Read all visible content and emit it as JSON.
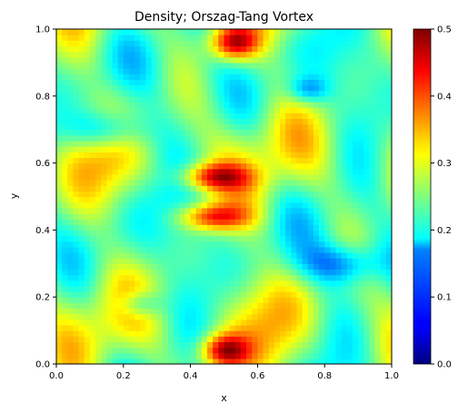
{
  "chart_data": {
    "type": "heatmap",
    "title": "Density; Orszag-Tang Vortex",
    "xlabel": "x",
    "ylabel": "y",
    "xlim": [
      0.0,
      1.0
    ],
    "ylim": [
      0.0,
      1.0
    ],
    "x_ticks": [
      "0.0",
      "0.2",
      "0.4",
      "0.6",
      "0.8",
      "1.0"
    ],
    "y_ticks": [
      "0.0",
      "0.2",
      "0.4",
      "0.6",
      "0.8",
      "1.0"
    ],
    "colormap": "jet",
    "colorbar": {
      "range": [
        0.0,
        0.5
      ],
      "ticks": [
        "0.0",
        "0.1",
        "0.2",
        "0.3",
        "0.4",
        "0.5"
      ]
    },
    "grid": false,
    "value_range": [
      0.0,
      0.5
    ]
  }
}
